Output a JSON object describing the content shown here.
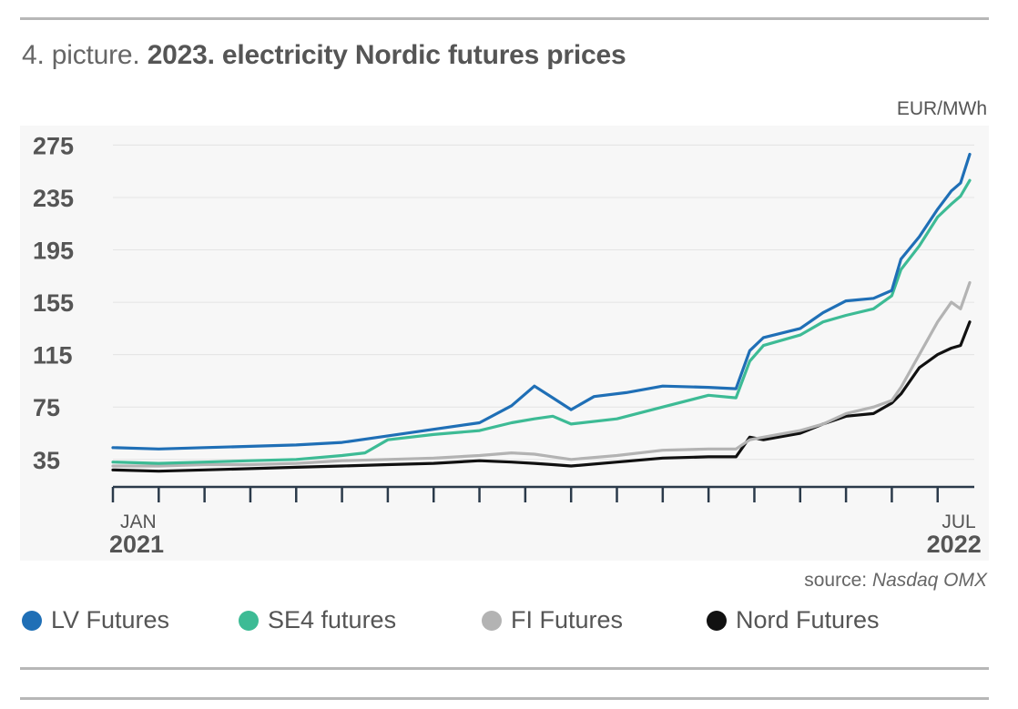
{
  "title": {
    "prefix": "4. picture.",
    "main": "2023. electricity Nordic futures prices"
  },
  "unit": "EUR/MWh",
  "source": {
    "prefix": "source:",
    "name": "Nasdaq OMX"
  },
  "legend": [
    {
      "label": "LV Futures",
      "color": "#1f6fb6"
    },
    {
      "label": "SE4 futures",
      "color": "#3dbb95"
    },
    {
      "label": "FI Futures",
      "color": "#b3b3b3"
    },
    {
      "label": "Nord Futures",
      "color": "#111111"
    }
  ],
  "chart_data": {
    "type": "line",
    "title": "2023. electricity Nordic futures prices",
    "ylabel": "EUR/MWh",
    "xlabel": "",
    "y_ticks": [
      35,
      75,
      115,
      155,
      195,
      235,
      275
    ],
    "ylim": [
      14,
      285
    ],
    "xlim": [
      0,
      18.8
    ],
    "x_tick_positions": [
      0,
      1,
      2,
      3,
      4,
      5,
      6,
      7,
      8,
      9,
      10,
      11,
      12,
      13,
      14,
      15,
      16,
      17,
      18
    ],
    "x_tick_labels": [
      {
        "month": "JAN",
        "year": "2021",
        "x": 0
      },
      {
        "month": "JUL",
        "year": "2022",
        "x": 18
      }
    ],
    "x_unit": "months since Jan 2021",
    "grid": true,
    "series": [
      {
        "name": "LV Futures",
        "color": "#1f6fb6",
        "points": [
          [
            0,
            44
          ],
          [
            1,
            43
          ],
          [
            2,
            44
          ],
          [
            3,
            45
          ],
          [
            4,
            46
          ],
          [
            5,
            48
          ],
          [
            6,
            53
          ],
          [
            7,
            58
          ],
          [
            8,
            63
          ],
          [
            8.7,
            76
          ],
          [
            9.2,
            91
          ],
          [
            9.6,
            82
          ],
          [
            10,
            73
          ],
          [
            10.5,
            83
          ],
          [
            11.2,
            86
          ],
          [
            12,
            91
          ],
          [
            13,
            90
          ],
          [
            13.6,
            89
          ],
          [
            13.9,
            118
          ],
          [
            14.2,
            128
          ],
          [
            15,
            135
          ],
          [
            15.5,
            147
          ],
          [
            16,
            156
          ],
          [
            16.6,
            158
          ],
          [
            17,
            164
          ],
          [
            17.2,
            188
          ],
          [
            17.6,
            205
          ],
          [
            18,
            226
          ],
          [
            18.3,
            240
          ],
          [
            18.5,
            246
          ],
          [
            18.7,
            268
          ]
        ]
      },
      {
        "name": "SE4 futures",
        "color": "#3dbb95",
        "points": [
          [
            0,
            33
          ],
          [
            1,
            32
          ],
          [
            2,
            33
          ],
          [
            3,
            34
          ],
          [
            4,
            35
          ],
          [
            5,
            38
          ],
          [
            5.5,
            40
          ],
          [
            6,
            50
          ],
          [
            7,
            54
          ],
          [
            8,
            57
          ],
          [
            8.7,
            63
          ],
          [
            9.2,
            66
          ],
          [
            9.6,
            68
          ],
          [
            10,
            62
          ],
          [
            11,
            66
          ],
          [
            12,
            75
          ],
          [
            13,
            84
          ],
          [
            13.6,
            82
          ],
          [
            13.9,
            110
          ],
          [
            14.2,
            122
          ],
          [
            15,
            130
          ],
          [
            15.5,
            140
          ],
          [
            16,
            145
          ],
          [
            16.6,
            150
          ],
          [
            17,
            160
          ],
          [
            17.2,
            180
          ],
          [
            17.6,
            198
          ],
          [
            18,
            220
          ],
          [
            18.3,
            230
          ],
          [
            18.5,
            236
          ],
          [
            18.7,
            248
          ]
        ]
      },
      {
        "name": "FI Futures",
        "color": "#b3b3b3",
        "points": [
          [
            0,
            30
          ],
          [
            1,
            30
          ],
          [
            2,
            31
          ],
          [
            3,
            31
          ],
          [
            4,
            32
          ],
          [
            5,
            34
          ],
          [
            6,
            35
          ],
          [
            7,
            36
          ],
          [
            8,
            38
          ],
          [
            8.7,
            40
          ],
          [
            9.2,
            39
          ],
          [
            9.6,
            37
          ],
          [
            10,
            35
          ],
          [
            11,
            38
          ],
          [
            12,
            42
          ],
          [
            13,
            43
          ],
          [
            13.6,
            43
          ],
          [
            13.9,
            50
          ],
          [
            14.2,
            52
          ],
          [
            15,
            57
          ],
          [
            15.5,
            62
          ],
          [
            16,
            70
          ],
          [
            16.6,
            75
          ],
          [
            17,
            80
          ],
          [
            17.2,
            90
          ],
          [
            17.6,
            115
          ],
          [
            18,
            140
          ],
          [
            18.3,
            155
          ],
          [
            18.5,
            150
          ],
          [
            18.7,
            170
          ]
        ]
      },
      {
        "name": "Nord Futures",
        "color": "#111111",
        "points": [
          [
            0,
            27
          ],
          [
            1,
            26
          ],
          [
            2,
            27
          ],
          [
            3,
            28
          ],
          [
            4,
            29
          ],
          [
            5,
            30
          ],
          [
            6,
            31
          ],
          [
            7,
            32
          ],
          [
            8,
            34
          ],
          [
            8.7,
            33
          ],
          [
            9.2,
            32
          ],
          [
            9.6,
            31
          ],
          [
            10,
            30
          ],
          [
            11,
            33
          ],
          [
            12,
            36
          ],
          [
            13,
            37
          ],
          [
            13.6,
            37
          ],
          [
            13.9,
            52
          ],
          [
            14.2,
            50
          ],
          [
            15,
            55
          ],
          [
            15.5,
            62
          ],
          [
            16,
            68
          ],
          [
            16.6,
            70
          ],
          [
            17,
            78
          ],
          [
            17.2,
            85
          ],
          [
            17.6,
            105
          ],
          [
            18,
            115
          ],
          [
            18.3,
            120
          ],
          [
            18.5,
            122
          ],
          [
            18.7,
            140
          ]
        ]
      }
    ]
  }
}
